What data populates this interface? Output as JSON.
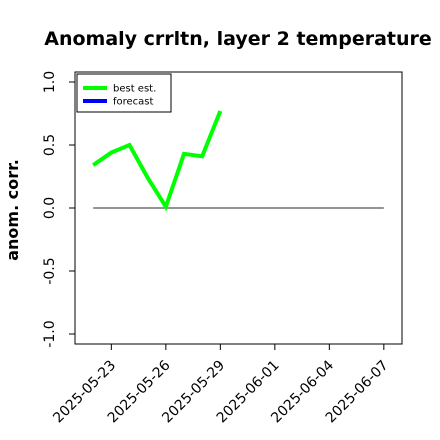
{
  "chart_data": {
    "type": "line",
    "title": "Anomaly crrltn, layer 2 temperature",
    "xlabel": "",
    "ylabel": "anom. corr.",
    "x_dates": [
      "2025-05-22",
      "2025-05-23",
      "2025-05-24",
      "2025-05-25",
      "2025-05-26",
      "2025-05-27",
      "2025-05-28",
      "2025-05-29"
    ],
    "x_ticks": [
      "2025-05-23",
      "2025-05-26",
      "2025-05-29",
      "2025-06-01",
      "2025-06-04",
      "2025-06-07"
    ],
    "x_tick_highlight": "2025-05-29",
    "xlim": [
      "2025-05-21",
      "2025-06-08"
    ],
    "ylim": [
      -1.0,
      1.0
    ],
    "y_ticks": [
      "-1.0",
      "-0.5",
      "0.0",
      "0.5",
      "1.0"
    ],
    "y_tick_values": [
      -1.0,
      -0.5,
      0.0,
      0.5,
      1.0
    ],
    "reference_line": {
      "y": 0.0,
      "from": "2025-05-22",
      "to": "2025-06-07",
      "color": "#555555"
    },
    "series": [
      {
        "name": "best est.",
        "color": "#00ff00",
        "values": [
          0.34,
          0.44,
          0.5,
          0.24,
          0.01,
          0.43,
          0.41,
          0.77
        ]
      },
      {
        "name": "forecast",
        "color": "#0000ff",
        "values": []
      }
    ],
    "legend_position": "top-left",
    "highlight_color": "#228b22"
  }
}
